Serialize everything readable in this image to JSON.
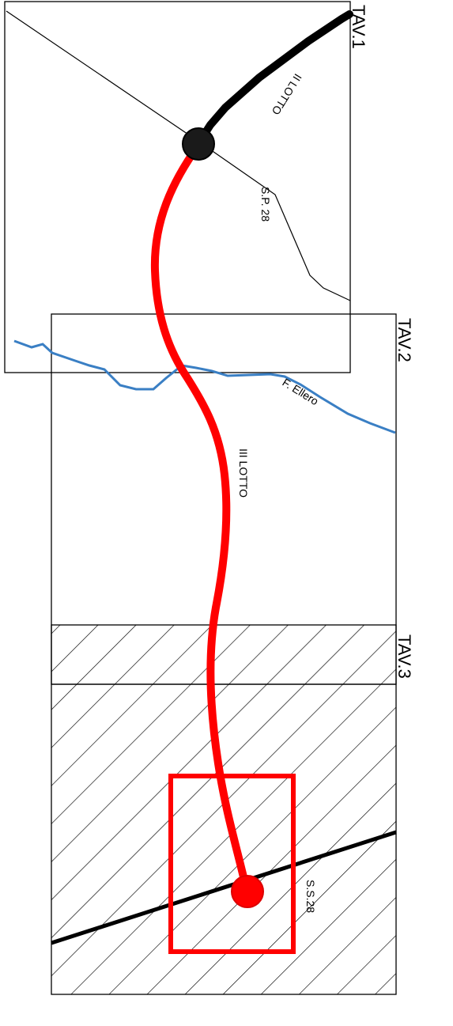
{
  "sheets": [
    {
      "id": "tav1",
      "label": "TAV.1"
    },
    {
      "id": "tav2",
      "label": "TAV.2"
    },
    {
      "id": "tav3",
      "label": "TAV.3"
    }
  ],
  "labels": {
    "lotto_2": "II LOTTO",
    "lotto_3": "III LOTTO",
    "sp28": "S.P. 28",
    "river": "F. Ellero",
    "ss28": "S.S.28"
  },
  "colors": {
    "route_new": "#ff0000",
    "route_existing": "#000000",
    "river": "#3a7fc4",
    "frame": "#000000"
  }
}
